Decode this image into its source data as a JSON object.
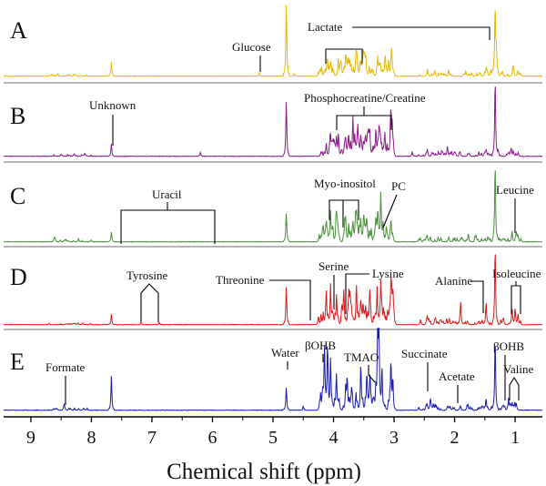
{
  "chart_data": {
    "type": "line",
    "title": "",
    "xlabel": "Chemical shift (ppm)",
    "ylabel": "",
    "xlim": [
      9.45,
      0.55
    ],
    "x_ticks": [
      9,
      8,
      7,
      6,
      5,
      4,
      3,
      2,
      1
    ],
    "series": [
      {
        "name": "A",
        "color": "#e8b800",
        "peaks": [
          [
            7.67,
            0.2
          ],
          [
            5.23,
            0.05
          ],
          [
            4.78,
            1.0
          ],
          [
            4.65,
            0.04
          ],
          [
            4.1,
            0.14
          ],
          [
            4.05,
            0.1
          ],
          [
            3.92,
            0.12
          ],
          [
            3.89,
            0.09
          ],
          [
            3.8,
            0.2
          ],
          [
            3.74,
            0.16
          ],
          [
            3.71,
            0.12
          ],
          [
            3.63,
            0.18
          ],
          [
            3.55,
            0.14
          ],
          [
            3.47,
            0.22
          ],
          [
            3.41,
            0.14
          ],
          [
            3.25,
            0.12
          ],
          [
            3.05,
            0.1
          ],
          [
            2.45,
            0.05
          ],
          [
            2.1,
            0.05
          ],
          [
            1.48,
            0.06
          ],
          [
            1.33,
            0.93
          ],
          [
            1.31,
            0.35
          ],
          [
            1.03,
            0.08
          ],
          [
            0.95,
            0.06
          ]
        ]
      },
      {
        "name": "B",
        "color": "#8b1a89",
        "peaks": [
          [
            7.67,
            0.16
          ],
          [
            6.2,
            0.05
          ],
          [
            4.78,
            0.7
          ],
          [
            4.12,
            0.18
          ],
          [
            4.05,
            0.16
          ],
          [
            3.95,
            0.23
          ],
          [
            3.92,
            0.18
          ],
          [
            3.8,
            0.18
          ],
          [
            3.72,
            0.17
          ],
          [
            3.68,
            0.34
          ],
          [
            3.6,
            0.3
          ],
          [
            3.55,
            0.19
          ],
          [
            3.47,
            0.2
          ],
          [
            3.4,
            0.22
          ],
          [
            3.3,
            0.29
          ],
          [
            3.25,
            0.3
          ],
          [
            3.15,
            0.22
          ],
          [
            3.05,
            0.46
          ],
          [
            3.03,
            0.38
          ],
          [
            2.7,
            0.06
          ],
          [
            2.45,
            0.07
          ],
          [
            2.12,
            0.08
          ],
          [
            2.05,
            0.06
          ],
          [
            1.48,
            0.08
          ],
          [
            1.33,
            1.0
          ],
          [
            1.03,
            0.07
          ],
          [
            0.95,
            0.05
          ]
        ]
      },
      {
        "name": "C",
        "color": "#4a8f3e",
        "peaks": [
          [
            8.6,
            0.03
          ],
          [
            7.67,
            0.12
          ],
          [
            4.78,
            0.36
          ],
          [
            4.12,
            0.22
          ],
          [
            4.05,
            0.33
          ],
          [
            3.95,
            0.2
          ],
          [
            3.8,
            0.28
          ],
          [
            3.75,
            0.23
          ],
          [
            3.62,
            0.33
          ],
          [
            3.55,
            0.29
          ],
          [
            3.5,
            0.22
          ],
          [
            3.45,
            0.18
          ],
          [
            3.3,
            0.28
          ],
          [
            3.27,
            0.3
          ],
          [
            3.22,
            0.5
          ],
          [
            3.18,
            0.24
          ],
          [
            3.05,
            0.22
          ],
          [
            2.45,
            0.06
          ],
          [
            2.1,
            0.05
          ],
          [
            1.9,
            0.04
          ],
          [
            1.33,
            1.0
          ],
          [
            1.05,
            0.12
          ],
          [
            0.98,
            0.1
          ]
        ]
      },
      {
        "name": "D",
        "color": "#e01818",
        "peaks": [
          [
            7.67,
            0.13
          ],
          [
            7.18,
            0.03
          ],
          [
            6.88,
            0.03
          ],
          [
            4.78,
            0.48
          ],
          [
            4.25,
            0.11
          ],
          [
            4.12,
            0.45
          ],
          [
            4.05,
            0.42
          ],
          [
            3.95,
            0.31
          ],
          [
            3.83,
            0.26
          ],
          [
            3.75,
            0.28
          ],
          [
            3.62,
            0.33
          ],
          [
            3.55,
            0.29
          ],
          [
            3.47,
            0.22
          ],
          [
            3.4,
            0.2
          ],
          [
            3.28,
            0.41
          ],
          [
            3.22,
            0.52
          ],
          [
            3.05,
            0.45
          ],
          [
            3.02,
            0.39
          ],
          [
            2.45,
            0.06
          ],
          [
            1.9,
            0.27
          ],
          [
            1.48,
            0.29
          ],
          [
            1.33,
            1.0
          ],
          [
            1.19,
            0.05
          ],
          [
            1.05,
            0.19
          ],
          [
            1.0,
            0.19
          ],
          [
            0.95,
            0.12
          ]
        ]
      },
      {
        "name": "E",
        "color": "#1a1ab4",
        "peaks": [
          [
            8.45,
            0.06
          ],
          [
            7.67,
            0.42
          ],
          [
            4.78,
            0.28
          ],
          [
            4.5,
            0.05
          ],
          [
            4.15,
            0.71
          ],
          [
            4.1,
            0.78
          ],
          [
            4.05,
            0.55
          ],
          [
            3.95,
            0.37
          ],
          [
            3.8,
            0.29
          ],
          [
            3.7,
            0.27
          ],
          [
            3.55,
            0.34
          ],
          [
            3.45,
            0.3
          ],
          [
            3.4,
            0.24
          ],
          [
            3.27,
            0.8
          ],
          [
            3.25,
            1.0
          ],
          [
            3.2,
            0.52
          ],
          [
            3.05,
            0.49
          ],
          [
            3.02,
            0.4
          ],
          [
            2.4,
            0.11
          ],
          [
            2.35,
            0.08
          ],
          [
            2.1,
            0.05
          ],
          [
            1.91,
            0.04
          ],
          [
            1.48,
            0.11
          ],
          [
            1.33,
            0.88
          ],
          [
            1.21,
            0.05
          ],
          [
            1.05,
            0.09
          ],
          [
            0.98,
            0.08
          ]
        ]
      }
    ],
    "panel_labels": [
      "A",
      "B",
      "C",
      "D",
      "E"
    ],
    "annotations": [
      {
        "panel": "A",
        "text": "Glucose",
        "x": 5.23
      },
      {
        "panel": "A",
        "text": "Lactate",
        "x_range": [
          4.1,
          1.33
        ]
      },
      {
        "panel": "B",
        "text": "Unknown",
        "x": 7.67
      },
      {
        "panel": "B",
        "text": "Phosphocreatine/Creatine",
        "x_range": [
          3.95,
          3.03
        ]
      },
      {
        "panel": "C",
        "text": "Uracil",
        "x_range": [
          7.55,
          5.98
        ]
      },
      {
        "panel": "C",
        "text": "Myo-inositol",
        "x_range": [
          4.05,
          3.55
        ]
      },
      {
        "panel": "C",
        "text": "PC",
        "x": 3.22
      },
      {
        "panel": "C",
        "text": "Leucine",
        "x": 0.97
      },
      {
        "panel": "D",
        "text": "Threonine",
        "x": 4.25
      },
      {
        "panel": "D",
        "text": "Tyrosine",
        "x_range": [
          7.18,
          6.88
        ]
      },
      {
        "panel": "D",
        "text": "Serine",
        "x": 3.95
      },
      {
        "panel": "D",
        "text": "Lysine",
        "x": 3.75
      },
      {
        "panel": "D",
        "text": "Alanine",
        "x": 1.48
      },
      {
        "panel": "D",
        "text": "Isoleucine",
        "x_range": [
          1.02,
          0.93
        ]
      },
      {
        "panel": "E",
        "text": "Formate",
        "x": 8.45
      },
      {
        "panel": "E",
        "text": "Water",
        "x": 4.78
      },
      {
        "panel": "E",
        "text": "βOHB",
        "x": 4.15
      },
      {
        "panel": "E",
        "text": "TMAO",
        "x": 3.27
      },
      {
        "panel": "E",
        "text": "Succinate",
        "x": 2.4
      },
      {
        "panel": "E",
        "text": "Acetate",
        "x": 1.91
      },
      {
        "panel": "E",
        "text": "βOHB",
        "x": 1.21
      },
      {
        "panel": "E",
        "text": "Valine",
        "x_range": [
          1.05,
          0.98
        ]
      }
    ]
  }
}
